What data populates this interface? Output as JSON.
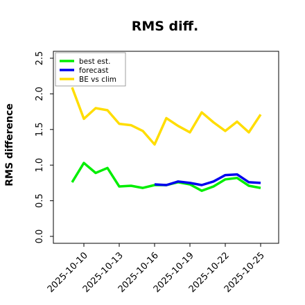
{
  "chart_data": {
    "type": "line",
    "title": "RMS diff.",
    "xlabel": "",
    "ylabel": "RMS difference",
    "ylim": [
      0.0,
      2.5
    ],
    "yticks": [
      "0.0",
      "0.5",
      "1.0",
      "1.5",
      "2.0",
      "2.5"
    ],
    "xticks": [
      "2025-10-10",
      "2025-10-13",
      "2025-10-16",
      "2025-10-19",
      "2025-10-22",
      "2025-10-25"
    ],
    "highlight_xtick": "2025-10-16",
    "highlight_color": "#228b22",
    "legend_position": "top-left",
    "grid": false,
    "series": [
      {
        "name": "best est.",
        "color": "#00ee00",
        "x": [
          "2025-10-09",
          "2025-10-10",
          "2025-10-11",
          "2025-10-12",
          "2025-10-13",
          "2025-10-14",
          "2025-10-15",
          "2025-10-16",
          "2025-10-17",
          "2025-10-18",
          "2025-10-19",
          "2025-10-20",
          "2025-10-21",
          "2025-10-22",
          "2025-10-23",
          "2025-10-24",
          "2025-10-25"
        ],
        "values": [
          0.76,
          1.03,
          0.89,
          0.96,
          0.7,
          0.71,
          0.68,
          0.72,
          0.72,
          0.76,
          0.73,
          0.64,
          0.7,
          0.8,
          0.82,
          0.71,
          0.68
        ]
      },
      {
        "name": "forecast",
        "color": "#0000ee",
        "x": [
          "2025-10-16",
          "2025-10-17",
          "2025-10-18",
          "2025-10-19",
          "2025-10-20",
          "2025-10-21",
          "2025-10-22",
          "2025-10-23",
          "2025-10-24",
          "2025-10-25"
        ],
        "values": [
          0.73,
          0.72,
          0.77,
          0.75,
          0.72,
          0.77,
          0.86,
          0.87,
          0.76,
          0.75
        ]
      },
      {
        "name": "BE vs clim",
        "color": "#ffdd00",
        "x": [
          "2025-10-09",
          "2025-10-10",
          "2025-10-11",
          "2025-10-12",
          "2025-10-13",
          "2025-10-14",
          "2025-10-15",
          "2025-10-16",
          "2025-10-17",
          "2025-10-18",
          "2025-10-19",
          "2025-10-20",
          "2025-10-21",
          "2025-10-22",
          "2025-10-23",
          "2025-10-24",
          "2025-10-25"
        ],
        "values": [
          2.09,
          1.65,
          1.8,
          1.77,
          1.58,
          1.56,
          1.48,
          1.29,
          1.66,
          1.55,
          1.46,
          1.74,
          1.6,
          1.48,
          1.61,
          1.46,
          1.71
        ]
      }
    ]
  }
}
